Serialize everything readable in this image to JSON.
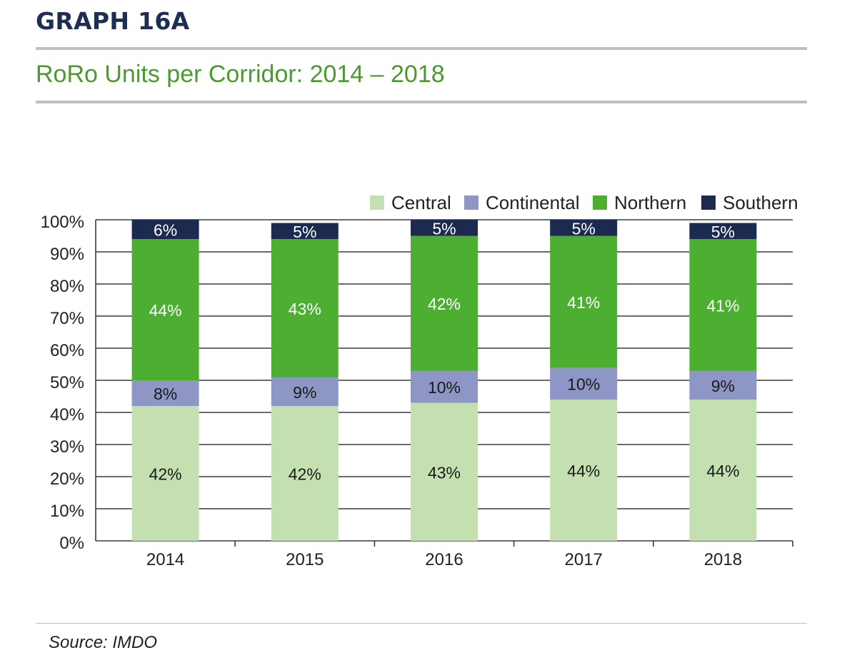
{
  "header": {
    "graph_label": "GRAPH 16A",
    "title": "RoRo Units per Corridor: 2014 – 2018"
  },
  "footer": {
    "source": "Source: IMDO"
  },
  "colors": {
    "Central": "#c5e0b0",
    "Continental": "#8d96c4",
    "Northern": "#4caf32",
    "Southern": "#1c2a4f"
  },
  "chart_data": {
    "type": "bar",
    "stacked": true,
    "categories": [
      "2014",
      "2015",
      "2016",
      "2017",
      "2018"
    ],
    "series": [
      {
        "name": "Central",
        "values": [
          42,
          42,
          43,
          44,
          44
        ],
        "labels": [
          "42%",
          "42%",
          "43%",
          "44%",
          "44%"
        ]
      },
      {
        "name": "Continental",
        "values": [
          8,
          9,
          10,
          10,
          9
        ],
        "labels": [
          "8%",
          "9%",
          "10%",
          "10%",
          "9%"
        ]
      },
      {
        "name": "Northern",
        "values": [
          44,
          43,
          42,
          41,
          41
        ],
        "labels": [
          "44%",
          "43%",
          "42%",
          "41%",
          "41%"
        ]
      },
      {
        "name": "Southern",
        "values": [
          6,
          5,
          5,
          5,
          5
        ],
        "labels": [
          "6%",
          "5%",
          "5%",
          "5%",
          "5%"
        ]
      }
    ],
    "legend_entries": [
      "Central",
      "Continental",
      "Northern",
      "Southern"
    ],
    "legend_position": "top-right",
    "y_ticks": [
      "0%",
      "10%",
      "20%",
      "30%",
      "40%",
      "50%",
      "60%",
      "70%",
      "80%",
      "90%",
      "100%"
    ],
    "ylim": [
      0,
      100
    ],
    "grid": true
  }
}
